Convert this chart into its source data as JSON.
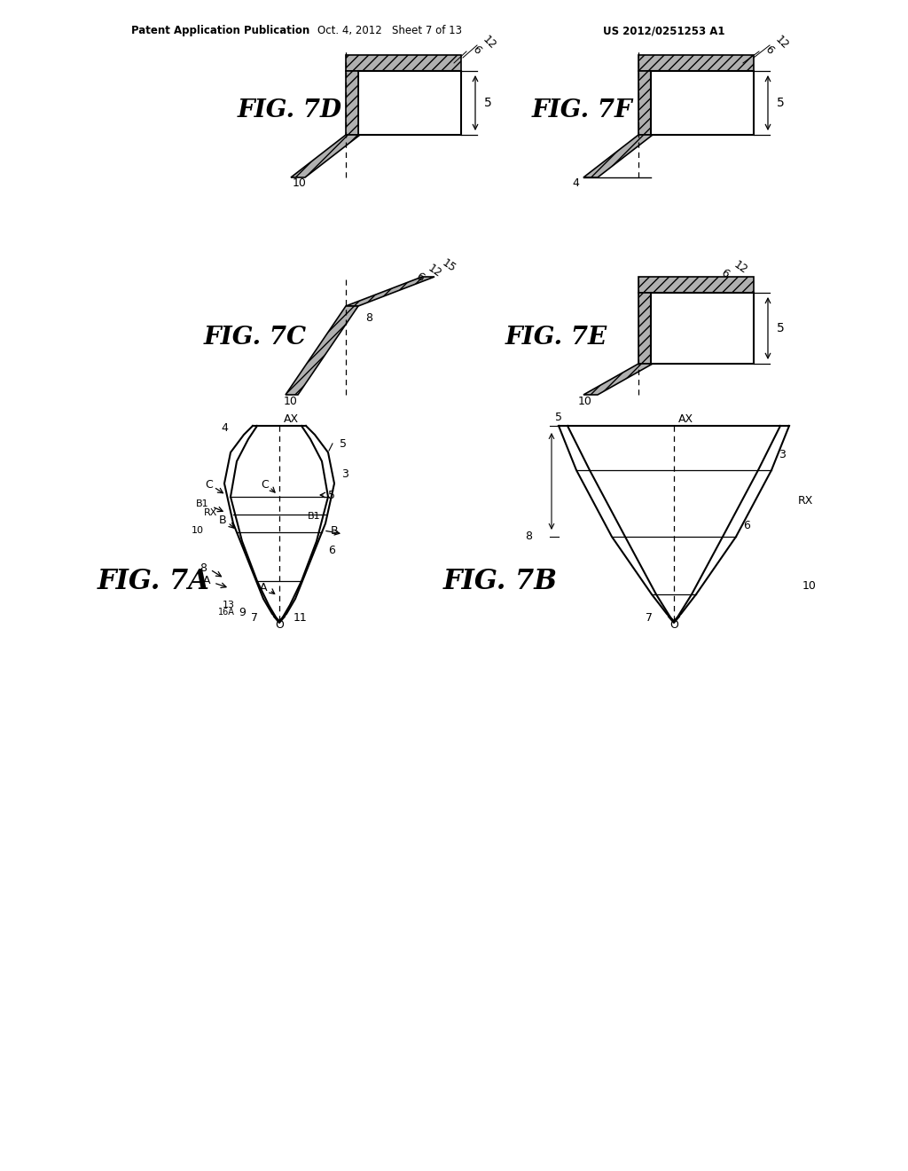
{
  "background_color": "#ffffff",
  "header_left": "Patent Application Publication",
  "header_center": "Oct. 4, 2012   Sheet 7 of 13",
  "header_right": "US 2012/0251253 A1",
  "line_color": "#000000"
}
